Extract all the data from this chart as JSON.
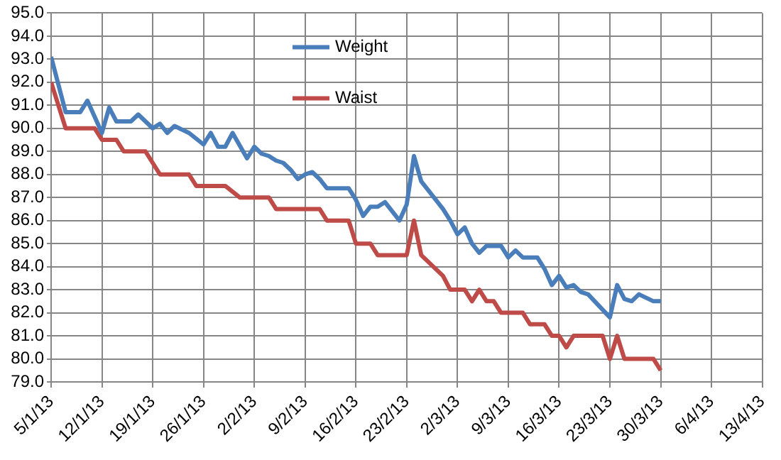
{
  "chart_data": {
    "type": "line",
    "x": [
      "--01-05",
      "--01-07",
      "--01-09",
      "--01-10",
      "--01-12",
      "--01-13",
      "--01-14",
      "--01-16",
      "--01-17",
      "--01-19",
      "--01-20",
      "--01-21",
      "--01-22",
      "--01-24",
      "--01-26",
      "--01-27",
      "--01-28",
      "--01-29",
      "--01-30",
      "--02-01",
      "--02-02",
      "--02-03",
      "--02-04",
      "--02-05",
      "--02-06",
      "--02-07",
      "--02-08",
      "--02-09",
      "--02-10",
      "--02-11",
      "--02-12",
      "--02-15",
      "--02-16",
      "--02-17",
      "--02-18",
      "--02-19",
      "--02-20",
      "--02-21",
      "--02-22",
      "--02-23",
      "--02-24",
      "--02-25",
      "--02-26",
      "--02-27",
      "--02-28",
      "--03-01",
      "--03-02",
      "--03-03",
      "--03-04",
      "--03-05",
      "--03-06",
      "--03-08",
      "--03-09",
      "--03-10",
      "--03-11",
      "--03-13",
      "--03-14",
      "--03-15",
      "--03-16",
      "--03-17",
      "--03-18",
      "--03-19",
      "--03-20",
      "--03-23",
      "--03-24",
      "--03-25",
      "--03-26",
      "--03-27",
      "--03-29",
      "--03-30"
    ],
    "series": [
      {
        "name": "Weight",
        "color": "#4a7ebb",
        "values": [
          93.1,
          90.7,
          90.7,
          91.2,
          89.8,
          90.9,
          90.3,
          90.3,
          90.6,
          90.0,
          90.2,
          89.8,
          90.1,
          89.8,
          89.3,
          89.8,
          89.2,
          89.2,
          89.8,
          88.7,
          89.2,
          88.9,
          88.8,
          88.6,
          88.5,
          88.2,
          87.8,
          88.0,
          88.1,
          87.8,
          87.4,
          87.4,
          86.9,
          86.2,
          86.6,
          86.6,
          86.8,
          86.4,
          86.0,
          86.7,
          88.8,
          87.7,
          87.3,
          86.9,
          86.5,
          86.0,
          85.4,
          85.7,
          85.0,
          84.6,
          84.9,
          84.9,
          84.4,
          84.7,
          84.4,
          84.4,
          83.9,
          83.2,
          83.6,
          83.1,
          83.2,
          82.9,
          82.8,
          81.8,
          83.2,
          82.6,
          82.5,
          82.8,
          82.5,
          82.5
        ]
      },
      {
        "name": "Waist",
        "color": "#be4b48",
        "x": [
          "--01-05",
          "--01-07",
          "--01-11",
          "--01-12",
          "--01-14",
          "--01-15",
          "--01-18",
          "--01-20",
          "--01-24",
          "--01-25",
          "--01-29",
          "--01-31",
          "--02-04",
          "--02-05",
          "--02-11",
          "--02-12",
          "--02-15",
          "--02-16",
          "--02-18",
          "--02-19",
          "--02-23",
          "--02-24",
          "--02-25",
          "--02-26",
          "--02-27",
          "--02-28",
          "--03-01",
          "--03-03",
          "--03-04",
          "--03-05",
          "--03-06",
          "--03-07",
          "--03-08",
          "--03-11",
          "--03-12",
          "--03-14",
          "--03-15",
          "--03-16",
          "--03-17",
          "--03-18",
          "--03-22",
          "--03-23",
          "--03-24",
          "--03-25",
          "--03-29",
          "--03-30"
        ],
        "values": [
          92.0,
          90.0,
          90.0,
          89.5,
          89.5,
          89.0,
          89.0,
          88.0,
          88.0,
          87.5,
          87.5,
          87.0,
          87.0,
          86.5,
          86.5,
          86.0,
          86.0,
          85.0,
          85.0,
          84.5,
          84.5,
          86.0,
          84.5,
          84.2,
          83.9,
          83.6,
          83.0,
          83.0,
          82.5,
          83.0,
          82.5,
          82.5,
          82.0,
          82.0,
          81.5,
          81.5,
          81.0,
          81.0,
          80.5,
          81.0,
          81.0,
          80.0,
          81.0,
          80.0,
          80.0,
          79.5
        ]
      }
    ],
    "xlim": [
      "--01-05",
      "--04-13"
    ],
    "xticks": [
      {
        "value": "--01-05",
        "label": "5/1/13"
      },
      {
        "value": "--01-12",
        "label": "12/1/13"
      },
      {
        "value": "--01-19",
        "label": "19/1/13"
      },
      {
        "value": "--01-26",
        "label": "26/1/13"
      },
      {
        "value": "--02-02",
        "label": "2/2/13"
      },
      {
        "value": "--02-09",
        "label": "9/2/13"
      },
      {
        "value": "--02-16",
        "label": "16/2/13"
      },
      {
        "value": "--02-23",
        "label": "23/2/13"
      },
      {
        "value": "--03-02",
        "label": "2/3/13"
      },
      {
        "value": "--03-09",
        "label": "9/3/13"
      },
      {
        "value": "--03-16",
        "label": "16/3/13"
      },
      {
        "value": "--03-23",
        "label": "23/3/13"
      },
      {
        "value": "--03-30",
        "label": "30/3/13"
      },
      {
        "value": "--04-06",
        "label": "6/4/13"
      },
      {
        "value": "--04-13",
        "label": "13/4/13"
      }
    ],
    "ylim": [
      79,
      95
    ],
    "yticks": [
      {
        "value": 79,
        "label": "79.0"
      },
      {
        "value": 80,
        "label": "80.0"
      },
      {
        "value": 81,
        "label": "81.0"
      },
      {
        "value": 82,
        "label": "82.0"
      },
      {
        "value": 83,
        "label": "83.0"
      },
      {
        "value": 84,
        "label": "84.0"
      },
      {
        "value": 85,
        "label": "85.0"
      },
      {
        "value": 86,
        "label": "86.0"
      },
      {
        "value": 87,
        "label": "87.0"
      },
      {
        "value": 88,
        "label": "88.0"
      },
      {
        "value": 89,
        "label": "89.0"
      },
      {
        "value": 90,
        "label": "90.0"
      },
      {
        "value": 91,
        "label": "91.0"
      },
      {
        "value": 92,
        "label": "92.0"
      },
      {
        "value": 93,
        "label": "93.0"
      },
      {
        "value": 94,
        "label": "94.0"
      },
      {
        "value": 95,
        "label": "95.0"
      }
    ],
    "grid": true,
    "legend": "top",
    "marker": "none",
    "line_style": "solid"
  }
}
